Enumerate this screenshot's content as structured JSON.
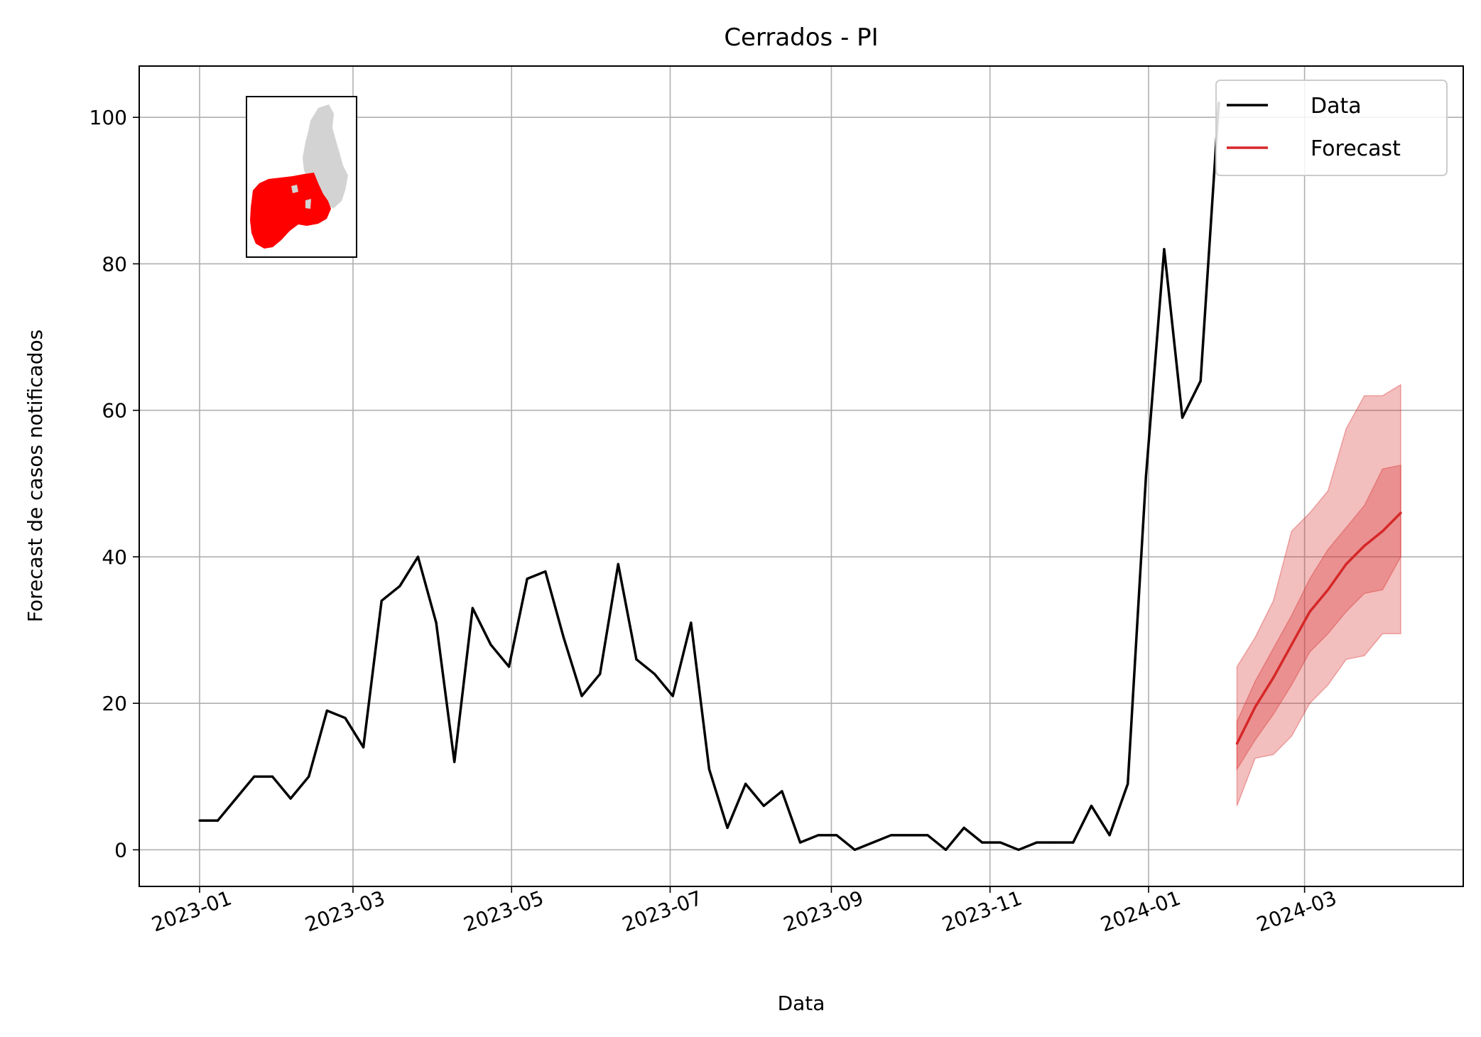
{
  "chart_data": {
    "type": "line",
    "title": "Cerrados - PI",
    "xlabel": "Data",
    "ylabel": "Forecast de casos notificados",
    "ylim": [
      -5,
      107
    ],
    "yticks": [
      0,
      20,
      40,
      60,
      80,
      100
    ],
    "xticks": [
      "2023-01",
      "2023-03",
      "2023-05",
      "2023-07",
      "2023-09",
      "2023-11",
      "2024-01",
      "2024-03"
    ],
    "grid": true,
    "legend_position": "top-right",
    "legend": [
      "Data",
      "Forecast"
    ],
    "colors": {
      "data": "#000000",
      "forecast": "#d62728",
      "band": "#d62728",
      "map_highlight": "#ff0000",
      "map_base": "#d3d3d3"
    },
    "series": [
      {
        "name": "Data",
        "x": [
          "2023-01-01",
          "2023-01-08",
          "2023-01-15",
          "2023-01-22",
          "2023-01-29",
          "2023-02-05",
          "2023-02-12",
          "2023-02-19",
          "2023-02-26",
          "2023-03-05",
          "2023-03-12",
          "2023-03-19",
          "2023-03-26",
          "2023-04-02",
          "2023-04-09",
          "2023-04-16",
          "2023-04-23",
          "2023-04-30",
          "2023-05-07",
          "2023-05-14",
          "2023-05-21",
          "2023-05-28",
          "2023-06-04",
          "2023-06-11",
          "2023-06-18",
          "2023-06-25",
          "2023-07-02",
          "2023-07-09",
          "2023-07-16",
          "2023-07-23",
          "2023-07-30",
          "2023-08-06",
          "2023-08-13",
          "2023-08-20",
          "2023-08-27",
          "2023-09-03",
          "2023-09-10",
          "2023-09-17",
          "2023-09-24",
          "2023-10-01",
          "2023-10-08",
          "2023-10-15",
          "2023-10-22",
          "2023-10-29",
          "2023-11-05",
          "2023-11-12",
          "2023-11-19",
          "2023-11-26",
          "2023-12-03",
          "2023-12-10",
          "2023-12-17",
          "2023-12-24",
          "2023-12-31",
          "2024-01-07",
          "2024-01-14",
          "2024-01-21",
          "2024-01-28"
        ],
        "values": [
          4,
          4,
          7,
          10,
          10,
          7,
          10,
          19,
          18,
          14,
          34,
          36,
          40,
          31,
          12,
          33,
          28,
          25,
          37,
          38,
          29,
          21,
          24,
          39,
          26,
          24,
          21,
          31,
          11,
          3,
          9,
          6,
          8,
          1,
          2,
          2,
          0,
          1,
          2,
          2,
          2,
          0,
          3,
          1,
          1,
          0,
          1,
          1,
          1,
          6,
          2,
          9,
          51,
          82,
          59,
          64,
          102
        ]
      },
      {
        "name": "Forecast",
        "x": [
          "2024-02-04",
          "2024-02-11",
          "2024-02-18",
          "2024-02-25",
          "2024-03-03",
          "2024-03-10",
          "2024-03-17",
          "2024-03-24",
          "2024-03-31",
          "2024-04-07"
        ],
        "values": [
          14.5,
          19.5,
          23.5,
          28,
          32.5,
          35.5,
          39,
          41.5,
          43.5,
          46
        ],
        "inner_lower": [
          11,
          15,
          18.5,
          22.5,
          27,
          29.5,
          32.5,
          35,
          35.5,
          40
        ],
        "inner_upper": [
          17.5,
          23,
          27.5,
          32,
          37,
          41,
          44,
          47,
          52,
          52.5
        ],
        "outer_lower": [
          6,
          12.5,
          13,
          15.5,
          20,
          22.5,
          26,
          26.5,
          29.5,
          29.5
        ],
        "outer_upper": [
          25,
          29,
          34,
          43.5,
          46,
          49,
          57.5,
          62,
          62,
          63.5
        ]
      }
    ]
  }
}
